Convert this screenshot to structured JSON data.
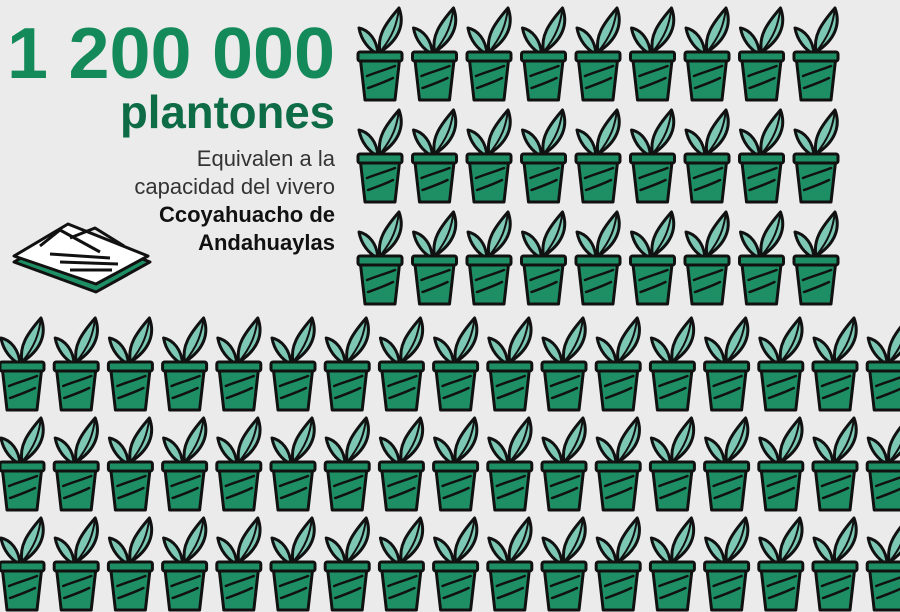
{
  "headline": {
    "number": "1 200 000",
    "unit": "plantones"
  },
  "description": {
    "lines": [
      "Equivalen a la",
      "capacidad del vivero"
    ],
    "place_lines": [
      "Ccoyahuacho de",
      "Andahuaylas"
    ]
  }
}
